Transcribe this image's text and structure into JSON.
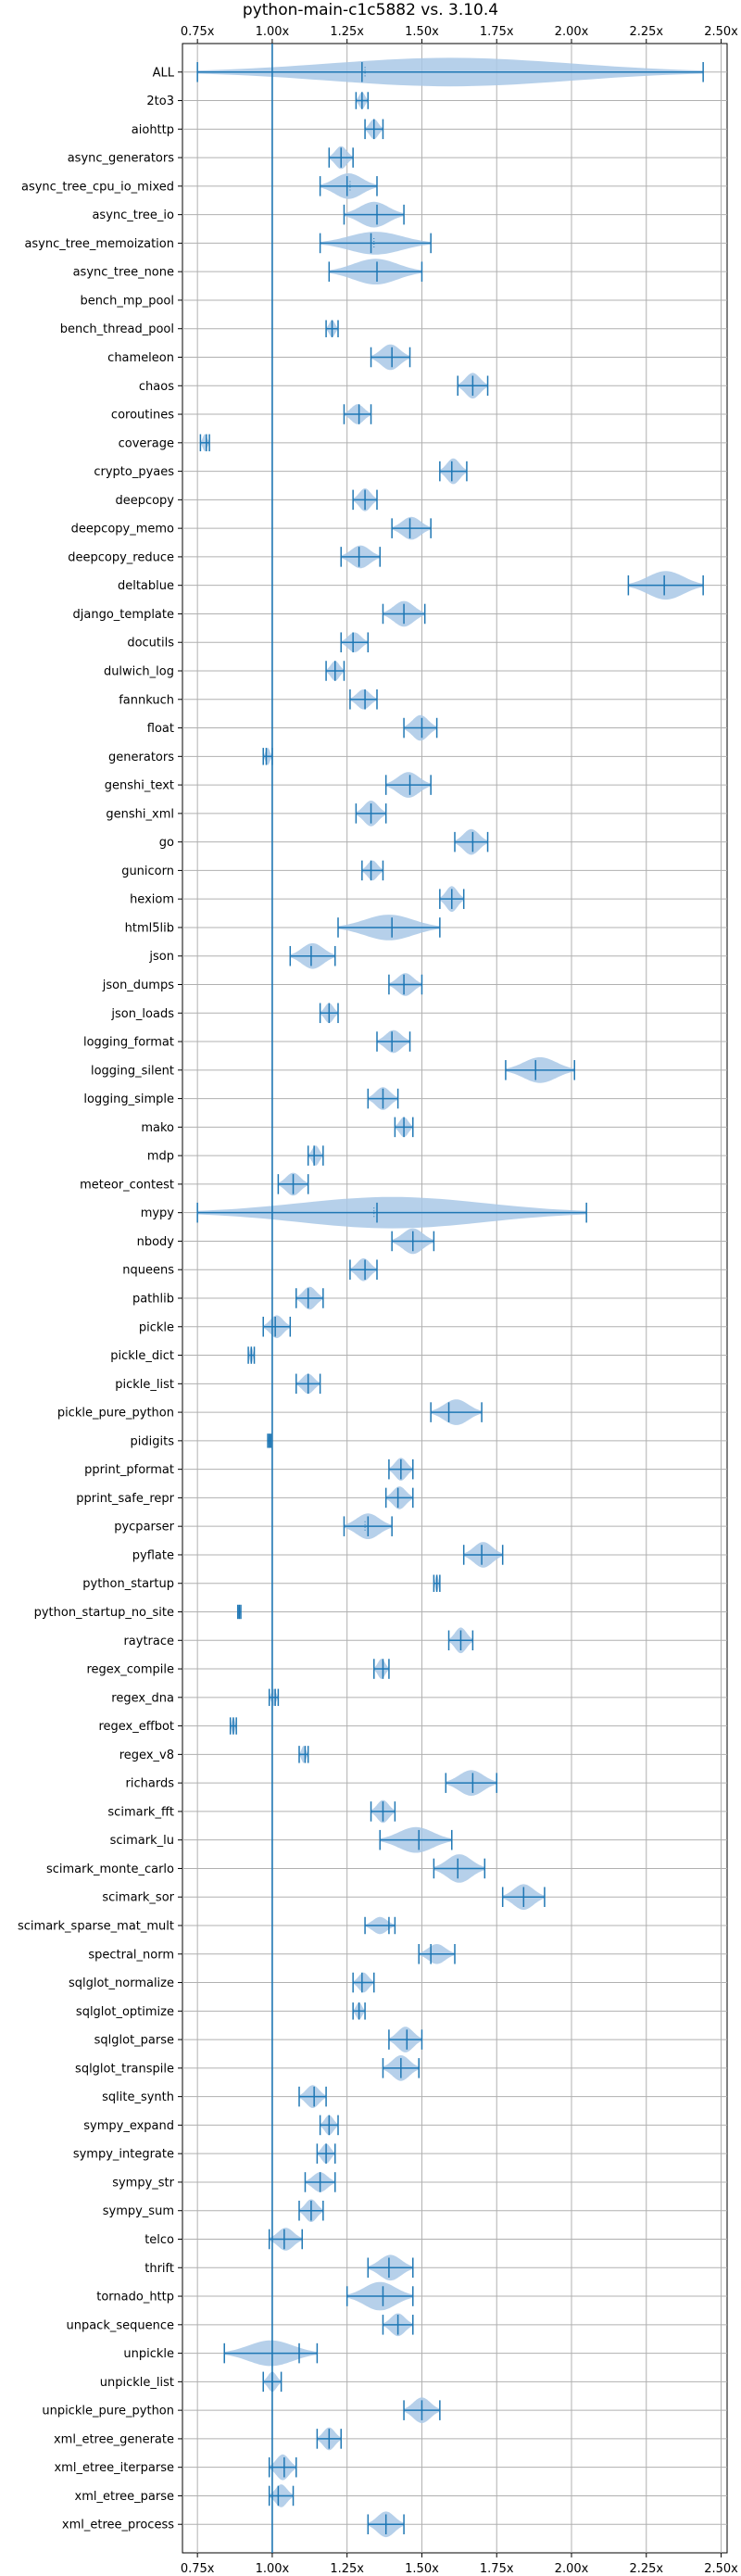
{
  "chart_data": {
    "type": "violin",
    "title": "python-main-c1c5882 vs. 3.10.4",
    "xlim": [
      0.7,
      2.52
    ],
    "x_ticks": [
      0.75,
      1.0,
      1.25,
      1.5,
      1.75,
      2.0,
      2.25,
      2.5
    ],
    "x_tick_labels": [
      "0.75x",
      "1.00x",
      "1.25x",
      "1.50x",
      "1.75x",
      "2.00x",
      "2.25x",
      "2.50x"
    ],
    "tick_labels_position": "top-and-bottom",
    "reference_line": 1.0,
    "grid": true,
    "colors": {
      "violin": "#a9c8e6",
      "line": "#1f77b4",
      "grid": "#b0b0b0"
    },
    "benchmarks": [
      {
        "name": "ALL",
        "mean": 1.3,
        "median": 1.31,
        "min": 0.75,
        "max": 2.44,
        "width": 0.5
      },
      {
        "name": "2to3",
        "mean": 1.3,
        "median": 1.3,
        "min": 1.28,
        "max": 1.32,
        "width": 0.3
      },
      {
        "name": "aiohttp",
        "mean": 1.34,
        "median": 1.34,
        "min": 1.31,
        "max": 1.37,
        "width": 0.35
      },
      {
        "name": "async_generators",
        "mean": 1.23,
        "median": 1.23,
        "min": 1.19,
        "max": 1.27,
        "width": 0.4
      },
      {
        "name": "async_tree_cpu_io_mixed",
        "mean": 1.25,
        "median": 1.26,
        "min": 1.16,
        "max": 1.35,
        "width": 0.45
      },
      {
        "name": "async_tree_io",
        "mean": 1.35,
        "median": 1.35,
        "min": 1.24,
        "max": 1.44,
        "width": 0.45
      },
      {
        "name": "async_tree_memoization",
        "mean": 1.33,
        "median": 1.34,
        "min": 1.16,
        "max": 1.53,
        "width": 0.4
      },
      {
        "name": "async_tree_none",
        "mean": 1.35,
        "median": 1.35,
        "min": 1.19,
        "max": 1.5,
        "width": 0.45
      },
      {
        "name": "bench_mp_pool",
        "mean": null,
        "median": null,
        "min": null,
        "max": null,
        "width": 0
      },
      {
        "name": "bench_thread_pool",
        "mean": 1.2,
        "median": 1.2,
        "min": 1.18,
        "max": 1.22,
        "width": 0.3
      },
      {
        "name": "chameleon",
        "mean": 1.4,
        "median": 1.4,
        "min": 1.33,
        "max": 1.46,
        "width": 0.45
      },
      {
        "name": "chaos",
        "mean": 1.67,
        "median": 1.67,
        "min": 1.62,
        "max": 1.72,
        "width": 0.45
      },
      {
        "name": "coroutines",
        "mean": 1.29,
        "median": 1.29,
        "min": 1.24,
        "max": 1.33,
        "width": 0.35
      },
      {
        "name": "coverage",
        "mean": 0.78,
        "median": 0.78,
        "min": 0.76,
        "max": 0.79,
        "width": 0.3
      },
      {
        "name": "crypto_pyaes",
        "mean": 1.6,
        "median": 1.6,
        "min": 1.56,
        "max": 1.65,
        "width": 0.45
      },
      {
        "name": "deepcopy",
        "mean": 1.31,
        "median": 1.31,
        "min": 1.27,
        "max": 1.35,
        "width": 0.4
      },
      {
        "name": "deepcopy_memo",
        "mean": 1.46,
        "median": 1.46,
        "min": 1.4,
        "max": 1.53,
        "width": 0.4
      },
      {
        "name": "deepcopy_reduce",
        "mean": 1.29,
        "median": 1.29,
        "min": 1.23,
        "max": 1.36,
        "width": 0.4
      },
      {
        "name": "deltablue",
        "mean": 2.31,
        "median": 2.31,
        "min": 2.19,
        "max": 2.44,
        "width": 0.5
      },
      {
        "name": "django_template",
        "mean": 1.44,
        "median": 1.44,
        "min": 1.37,
        "max": 1.51,
        "width": 0.45
      },
      {
        "name": "docutils",
        "mean": 1.27,
        "median": 1.27,
        "min": 1.23,
        "max": 1.32,
        "width": 0.35
      },
      {
        "name": "dulwich_log",
        "mean": 1.21,
        "median": 1.21,
        "min": 1.18,
        "max": 1.24,
        "width": 0.35
      },
      {
        "name": "fannkuch",
        "mean": 1.31,
        "median": 1.31,
        "min": 1.26,
        "max": 1.35,
        "width": 0.35
      },
      {
        "name": "float",
        "mean": 1.5,
        "median": 1.5,
        "min": 1.44,
        "max": 1.55,
        "width": 0.45
      },
      {
        "name": "generators",
        "mean": 0.98,
        "median": 0.98,
        "min": 0.97,
        "max": 1.0,
        "width": 0.3
      },
      {
        "name": "genshi_text",
        "mean": 1.46,
        "median": 1.46,
        "min": 1.38,
        "max": 1.53,
        "width": 0.45
      },
      {
        "name": "genshi_xml",
        "mean": 1.33,
        "median": 1.33,
        "min": 1.28,
        "max": 1.38,
        "width": 0.45
      },
      {
        "name": "go",
        "mean": 1.67,
        "median": 1.67,
        "min": 1.61,
        "max": 1.72,
        "width": 0.45
      },
      {
        "name": "gunicorn",
        "mean": 1.33,
        "median": 1.33,
        "min": 1.3,
        "max": 1.37,
        "width": 0.35
      },
      {
        "name": "hexiom",
        "mean": 1.6,
        "median": 1.6,
        "min": 1.56,
        "max": 1.64,
        "width": 0.45
      },
      {
        "name": "html5lib",
        "mean": 1.4,
        "median": 1.4,
        "min": 1.22,
        "max": 1.56,
        "width": 0.45
      },
      {
        "name": "json",
        "mean": 1.13,
        "median": 1.13,
        "min": 1.06,
        "max": 1.21,
        "width": 0.45
      },
      {
        "name": "json_dumps",
        "mean": 1.44,
        "median": 1.44,
        "min": 1.39,
        "max": 1.5,
        "width": 0.4
      },
      {
        "name": "json_loads",
        "mean": 1.19,
        "median": 1.19,
        "min": 1.16,
        "max": 1.22,
        "width": 0.35
      },
      {
        "name": "logging_format",
        "mean": 1.4,
        "median": 1.4,
        "min": 1.35,
        "max": 1.46,
        "width": 0.4
      },
      {
        "name": "logging_silent",
        "mean": 1.88,
        "median": 1.88,
        "min": 1.78,
        "max": 2.01,
        "width": 0.45
      },
      {
        "name": "logging_simple",
        "mean": 1.37,
        "median": 1.37,
        "min": 1.32,
        "max": 1.42,
        "width": 0.4
      },
      {
        "name": "mako",
        "mean": 1.44,
        "median": 1.44,
        "min": 1.41,
        "max": 1.47,
        "width": 0.35
      },
      {
        "name": "mdp",
        "mean": 1.14,
        "median": 1.14,
        "min": 1.12,
        "max": 1.17,
        "width": 0.35
      },
      {
        "name": "meteor_contest",
        "mean": 1.07,
        "median": 1.07,
        "min": 1.02,
        "max": 1.12,
        "width": 0.4
      },
      {
        "name": "mypy",
        "mean": 1.35,
        "median": 1.34,
        "min": 0.75,
        "max": 2.05,
        "width": 0.55
      },
      {
        "name": "nbody",
        "mean": 1.47,
        "median": 1.47,
        "min": 1.4,
        "max": 1.54,
        "width": 0.45
      },
      {
        "name": "nqueens",
        "mean": 1.31,
        "median": 1.31,
        "min": 1.26,
        "max": 1.35,
        "width": 0.4
      },
      {
        "name": "pathlib",
        "mean": 1.12,
        "median": 1.12,
        "min": 1.08,
        "max": 1.17,
        "width": 0.4
      },
      {
        "name": "pickle",
        "mean": 1.01,
        "median": 1.01,
        "min": 0.97,
        "max": 1.06,
        "width": 0.4
      },
      {
        "name": "pickle_dict",
        "mean": 0.93,
        "median": 0.93,
        "min": 0.92,
        "max": 0.94,
        "width": 0.3
      },
      {
        "name": "pickle_list",
        "mean": 1.12,
        "median": 1.12,
        "min": 1.08,
        "max": 1.16,
        "width": 0.35
      },
      {
        "name": "pickle_pure_python",
        "mean": 1.59,
        "median": 1.59,
        "min": 1.53,
        "max": 1.7,
        "width": 0.45
      },
      {
        "name": "pidigits",
        "mean": 0.99,
        "median": 0.99,
        "min": 0.985,
        "max": 0.995,
        "width": 0.25
      },
      {
        "name": "pprint_pformat",
        "mean": 1.43,
        "median": 1.43,
        "min": 1.39,
        "max": 1.47,
        "width": 0.4
      },
      {
        "name": "pprint_safe_repr",
        "mean": 1.42,
        "median": 1.42,
        "min": 1.38,
        "max": 1.47,
        "width": 0.4
      },
      {
        "name": "pycparser",
        "mean": 1.32,
        "median": 1.31,
        "min": 1.24,
        "max": 1.4,
        "width": 0.45
      },
      {
        "name": "pyflate",
        "mean": 1.7,
        "median": 1.7,
        "min": 1.64,
        "max": 1.77,
        "width": 0.45
      },
      {
        "name": "python_startup",
        "mean": 1.55,
        "median": 1.55,
        "min": 1.54,
        "max": 1.56,
        "width": 0.3
      },
      {
        "name": "python_startup_no_site",
        "mean": 0.89,
        "median": 0.89,
        "min": 0.885,
        "max": 0.895,
        "width": 0.25
      },
      {
        "name": "raytrace",
        "mean": 1.63,
        "median": 1.63,
        "min": 1.59,
        "max": 1.67,
        "width": 0.45
      },
      {
        "name": "regex_compile",
        "mean": 1.37,
        "median": 1.37,
        "min": 1.34,
        "max": 1.39,
        "width": 0.35
      },
      {
        "name": "regex_dna",
        "mean": 1.01,
        "median": 1.01,
        "min": 0.99,
        "max": 1.02,
        "width": 0.3
      },
      {
        "name": "regex_effbot",
        "mean": 0.87,
        "median": 0.87,
        "min": 0.86,
        "max": 0.88,
        "width": 0.3
      },
      {
        "name": "regex_v8",
        "mean": 1.11,
        "median": 1.11,
        "min": 1.09,
        "max": 1.12,
        "width": 0.3
      },
      {
        "name": "richards",
        "mean": 1.67,
        "median": 1.67,
        "min": 1.58,
        "max": 1.75,
        "width": 0.45
      },
      {
        "name": "scimark_fft",
        "mean": 1.37,
        "median": 1.37,
        "min": 1.33,
        "max": 1.41,
        "width": 0.4
      },
      {
        "name": "scimark_lu",
        "mean": 1.49,
        "median": 1.49,
        "min": 1.36,
        "max": 1.6,
        "width": 0.45
      },
      {
        "name": "scimark_monte_carlo",
        "mean": 1.62,
        "median": 1.62,
        "min": 1.54,
        "max": 1.71,
        "width": 0.5
      },
      {
        "name": "scimark_sor",
        "mean": 1.84,
        "median": 1.84,
        "min": 1.77,
        "max": 1.91,
        "width": 0.45
      },
      {
        "name": "scimark_sparse_mat_mult",
        "mean": 1.39,
        "median": 1.39,
        "min": 1.31,
        "max": 1.41,
        "width": 0.3
      },
      {
        "name": "spectral_norm",
        "mean": 1.53,
        "median": 1.53,
        "min": 1.49,
        "max": 1.61,
        "width": 0.35
      },
      {
        "name": "sqlglot_normalize",
        "mean": 1.3,
        "median": 1.3,
        "min": 1.27,
        "max": 1.34,
        "width": 0.35
      },
      {
        "name": "sqlglot_optimize",
        "mean": 1.29,
        "median": 1.29,
        "min": 1.27,
        "max": 1.31,
        "width": 0.3
      },
      {
        "name": "sqlglot_parse",
        "mean": 1.45,
        "median": 1.45,
        "min": 1.39,
        "max": 1.5,
        "width": 0.45
      },
      {
        "name": "sqlglot_transpile",
        "mean": 1.43,
        "median": 1.43,
        "min": 1.37,
        "max": 1.49,
        "width": 0.45
      },
      {
        "name": "sqlite_synth",
        "mean": 1.14,
        "median": 1.14,
        "min": 1.09,
        "max": 1.18,
        "width": 0.4
      },
      {
        "name": "sympy_expand",
        "mean": 1.19,
        "median": 1.19,
        "min": 1.16,
        "max": 1.22,
        "width": 0.35
      },
      {
        "name": "sympy_integrate",
        "mean": 1.18,
        "median": 1.18,
        "min": 1.15,
        "max": 1.21,
        "width": 0.35
      },
      {
        "name": "sympy_str",
        "mean": 1.16,
        "median": 1.16,
        "min": 1.11,
        "max": 1.21,
        "width": 0.35
      },
      {
        "name": "sympy_sum",
        "mean": 1.13,
        "median": 1.13,
        "min": 1.09,
        "max": 1.17,
        "width": 0.4
      },
      {
        "name": "telco",
        "mean": 1.04,
        "median": 1.04,
        "min": 0.99,
        "max": 1.1,
        "width": 0.4
      },
      {
        "name": "thrift",
        "mean": 1.39,
        "median": 1.39,
        "min": 1.32,
        "max": 1.47,
        "width": 0.45
      },
      {
        "name": "tornado_http",
        "mean": 1.37,
        "median": 1.37,
        "min": 1.25,
        "max": 1.47,
        "width": 0.5
      },
      {
        "name": "unpack_sequence",
        "mean": 1.42,
        "median": 1.42,
        "min": 1.37,
        "max": 1.47,
        "width": 0.4
      },
      {
        "name": "unpickle",
        "mean": 1.09,
        "median": 1.09,
        "min": 0.84,
        "max": 1.15,
        "width": 0.45
      },
      {
        "name": "unpickle_list",
        "mean": 1.0,
        "median": 1.0,
        "min": 0.97,
        "max": 1.03,
        "width": 0.35
      },
      {
        "name": "unpickle_pure_python",
        "mean": 1.5,
        "median": 1.5,
        "min": 1.44,
        "max": 1.56,
        "width": 0.45
      },
      {
        "name": "xml_etree_generate",
        "mean": 1.19,
        "median": 1.19,
        "min": 1.15,
        "max": 1.23,
        "width": 0.4
      },
      {
        "name": "xml_etree_iterparse",
        "mean": 1.04,
        "median": 1.04,
        "min": 0.99,
        "max": 1.08,
        "width": 0.45
      },
      {
        "name": "xml_etree_parse",
        "mean": 1.02,
        "median": 1.02,
        "min": 0.99,
        "max": 1.07,
        "width": 0.4
      },
      {
        "name": "xml_etree_process",
        "mean": 1.38,
        "median": 1.38,
        "min": 1.32,
        "max": 1.44,
        "width": 0.45
      }
    ]
  }
}
